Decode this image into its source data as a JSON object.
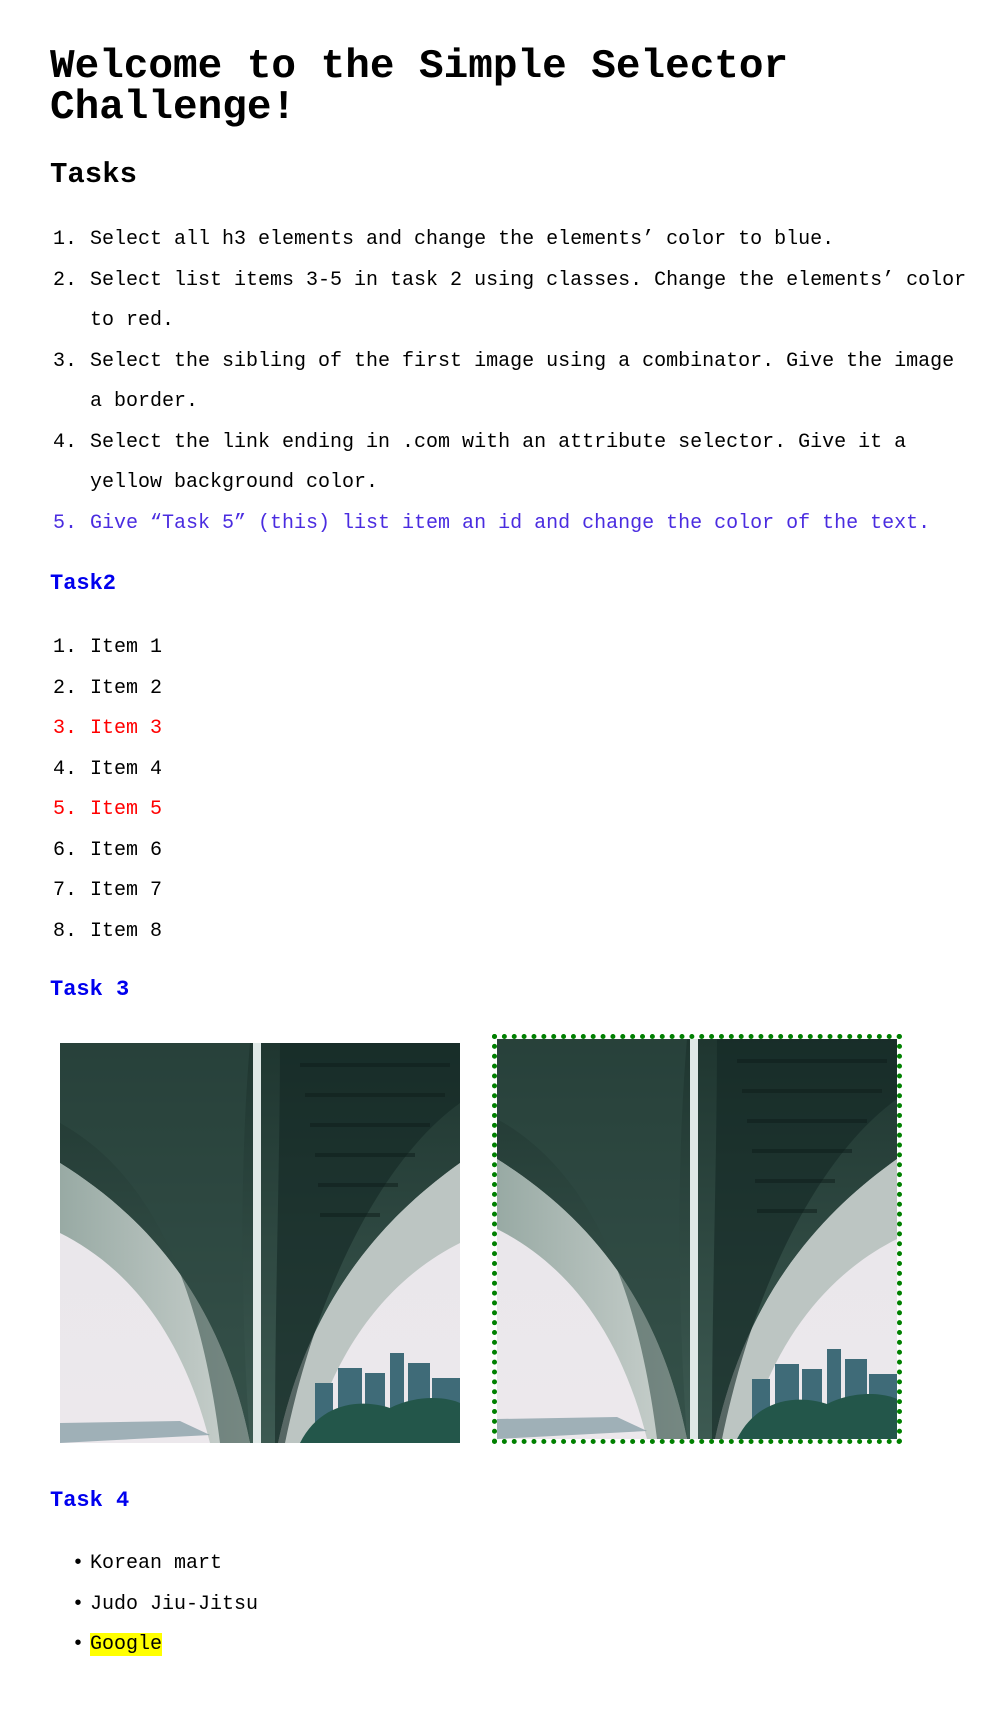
{
  "title": "Welcome to the Simple Selector Challenge!",
  "tasks_heading": "Tasks",
  "tasks": [
    {
      "num": "1.",
      "text": "Select all h3 elements and change the elements’ color to blue."
    },
    {
      "num": "2.",
      "text": "Select list items 3-5 in task 2 using classes. Change the elements’ color to red."
    },
    {
      "num": "3.",
      "text": "Select the sibling of the first image using a combinator. Give the image a border."
    },
    {
      "num": "4.",
      "text": "Select the link ending in .com with an attribute selector. Give it a yellow background color."
    },
    {
      "num": "5.",
      "text": "Give “Task 5” (this) list item an id and change the color of the text."
    }
  ],
  "task2": {
    "heading": "Task2",
    "items": [
      {
        "num": "1.",
        "text": "Item 1"
      },
      {
        "num": "2.",
        "text": "Item 2"
      },
      {
        "num": "3.",
        "text": "Item 3"
      },
      {
        "num": "4.",
        "text": "Item 4"
      },
      {
        "num": "5.",
        "text": "Item 5"
      },
      {
        "num": "6.",
        "text": "Item 6"
      },
      {
        "num": "7.",
        "text": "Item 7"
      },
      {
        "num": "8.",
        "text": "Item 8"
      }
    ]
  },
  "task3": {
    "heading": "Task 3"
  },
  "task4": {
    "heading": "Task 4",
    "links": [
      {
        "text": "Korean mart"
      },
      {
        "text": "Judo Jiu-Jitsu"
      },
      {
        "text": "Google"
      }
    ]
  },
  "colors": {
    "heading_blue": "#0000ee",
    "red_items": "#ff0000",
    "task5_text": "#4a2ce0",
    "border_green": "#008000",
    "highlight_yellow": "#ffff00"
  }
}
